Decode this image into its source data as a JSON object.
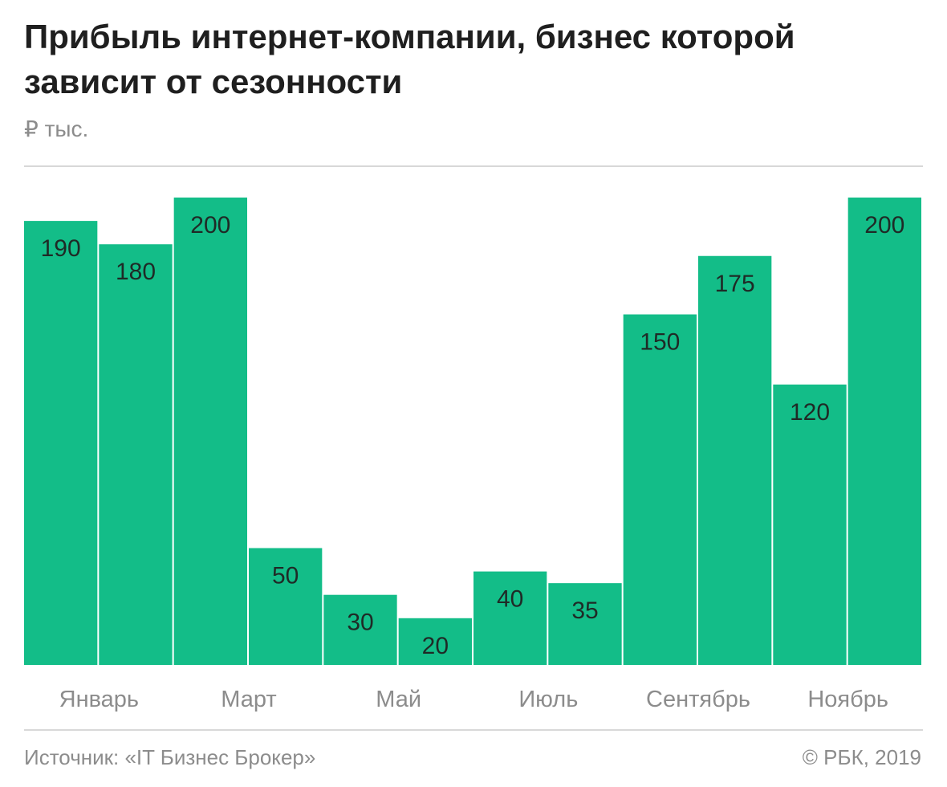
{
  "title": "Прибыль интернет-компании, бизнес которой зависит от сезонности",
  "unit_label": "₽ тыс.",
  "source": "Источник: «IT Бизнес Брокер»",
  "copyright": "© РБК, 2019",
  "colors": {
    "bar": "#13bd88",
    "bar_label": "#1f2a26",
    "tick_label": "#8c8c8c"
  },
  "chart_data": {
    "type": "bar",
    "categories": [
      "Январь",
      "",
      "Март",
      "",
      "Май",
      "",
      "Июль",
      "",
      "Сентябрь",
      "",
      "Ноябрь",
      ""
    ],
    "values": [
      190,
      180,
      200,
      50,
      30,
      20,
      40,
      35,
      150,
      175,
      120,
      200
    ],
    "ylim": [
      0,
      200
    ],
    "grid": false,
    "data_labels": true
  }
}
